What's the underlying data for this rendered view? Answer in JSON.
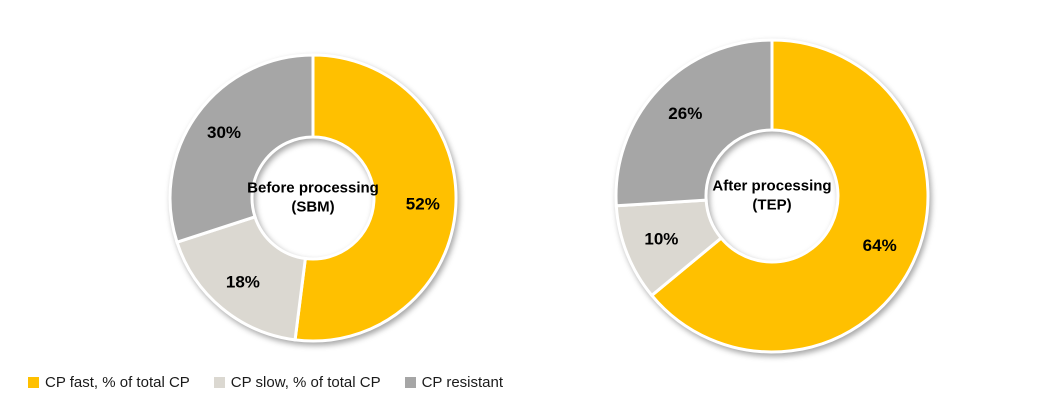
{
  "colors": {
    "cp_fast": "#FFC000",
    "cp_slow": "#DBD8D1",
    "cp_resistant": "#A6A6A6",
    "label_text": "#000000"
  },
  "chart_data": [
    {
      "type": "pie",
      "subtype": "donut",
      "title": "Before processing (SBM)",
      "center_label_lines": [
        "Before processing",
        "(SBM)"
      ],
      "categories": [
        "CP fast, % of total CP",
        "CP slow, % of total CP",
        "CP resistant"
      ],
      "values": [
        52,
        18,
        30
      ],
      "labels": [
        "52%",
        "18%",
        "30%"
      ],
      "colors": [
        "#FFC000",
        "#DBD8D1",
        "#A6A6A6"
      ],
      "start_angle_deg": 0,
      "direction": "clockwise",
      "grid": false,
      "legend_position": "bottom-left"
    },
    {
      "type": "pie",
      "subtype": "donut",
      "title": "After processing (TEP)",
      "center_label_lines": [
        "After processing",
        "(TEP)"
      ],
      "categories": [
        "CP fast, % of total CP",
        "CP slow, % of total CP",
        "CP resistant"
      ],
      "values": [
        64,
        10,
        26
      ],
      "labels": [
        "64%",
        "10%",
        "26%"
      ],
      "colors": [
        "#FFC000",
        "#DBD8D1",
        "#A6A6A6"
      ],
      "start_angle_deg": 0,
      "direction": "clockwise",
      "grid": false,
      "legend_position": "bottom-left"
    }
  ],
  "legend": {
    "items": [
      {
        "label": "CP fast, % of total CP",
        "color": "#FFC000"
      },
      {
        "label": "CP slow, % of total CP",
        "color": "#DBD8D1"
      },
      {
        "label": "CP resistant",
        "color": "#A6A6A6"
      }
    ]
  }
}
